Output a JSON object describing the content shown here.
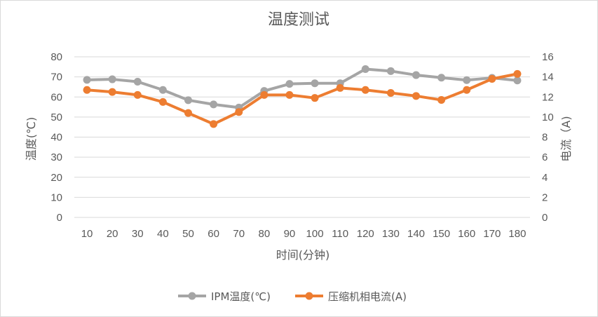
{
  "chart_data": {
    "type": "line",
    "title": "温度测试",
    "xlabel": "时间(分钟)",
    "ylabel": "温度(℃)",
    "y2label": "电流（A)",
    "categories": [
      "10",
      "20",
      "30",
      "40",
      "50",
      "60",
      "70",
      "80",
      "90",
      "100",
      "110",
      "120",
      "130",
      "140",
      "150",
      "160",
      "170",
      "180"
    ],
    "ylim": [
      0,
      80
    ],
    "y_ticks": [
      "0",
      "10",
      "20",
      "30",
      "40",
      "50",
      "60",
      "70",
      "80"
    ],
    "y2lim": [
      0,
      16
    ],
    "y2_ticks": [
      "0",
      "2",
      "4",
      "6",
      "8",
      "10",
      "12",
      "14",
      "16"
    ],
    "grid": true,
    "legend_position": "bottom",
    "series": [
      {
        "name": "IPM温度(℃)",
        "axis": "left",
        "color": "#a5a5a5",
        "values": [
          68.5,
          68.8,
          67.6,
          63.5,
          58.4,
          56.3,
          54.7,
          63.0,
          66.5,
          66.8,
          66.8,
          73.9,
          72.9,
          70.9,
          69.6,
          68.4,
          69.5,
          68.2
        ]
      },
      {
        "name": "压缩机相电流(A)",
        "axis": "right",
        "color": "#ed7d31",
        "values": [
          12.7,
          12.5,
          12.2,
          11.5,
          10.4,
          9.3,
          10.5,
          12.2,
          12.2,
          11.9,
          12.9,
          12.7,
          12.4,
          12.1,
          11.7,
          12.7,
          13.8,
          14.3
        ]
      }
    ]
  }
}
